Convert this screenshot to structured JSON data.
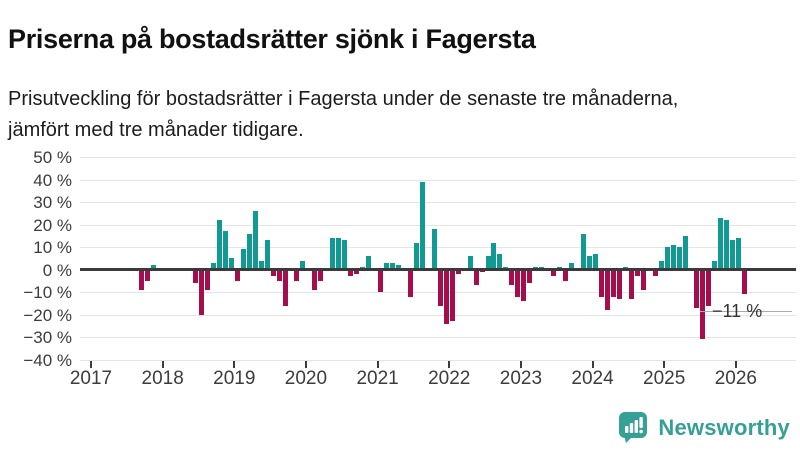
{
  "header": {
    "title": "Priserna på bostadsrätter sjönk i Fagersta",
    "subtitle": "Prisutveckling för bostadsrätter i Fagersta under de senaste tre månaderna, jämfört med tre månader tidigare."
  },
  "footer": {
    "brand": "Newsworthy"
  },
  "chart_data": {
    "type": "bar",
    "title": "Priserna på bostadsrätter sjönk i Fagersta",
    "subtitle": "Prisutveckling för bostadsrätter i Fagersta under de senaste tre månaderna, jämfört med tre månader tidigare.",
    "unit": "%",
    "ylim": [
      -40,
      50
    ],
    "grid": true,
    "y_ticks": {
      "values": [
        50,
        40,
        30,
        20,
        10,
        0,
        -10,
        -20,
        -30,
        -40
      ],
      "labels": [
        "50 %",
        "40 %",
        "30 %",
        "20 %",
        "10 %",
        "0 %",
        "−10 %",
        "−20 %",
        "−30 %",
        "−40 %"
      ]
    },
    "x_ticks": [
      "2017",
      "2018",
      "2019",
      "2020",
      "2021",
      "2022",
      "2023",
      "2024",
      "2025",
      "2026"
    ],
    "annotation": {
      "label": "−11 %",
      "value": -11,
      "month": "2026-02"
    },
    "colors": {
      "positive": "#119a94",
      "negative": "#a50d4d",
      "zero_line": "#3a3a3a",
      "grid": "#e4e4e4",
      "brand": "#35a094"
    },
    "series": [
      [
        "2017-09",
        -9
      ],
      [
        "2017-10",
        -5
      ],
      [
        "2017-11",
        2
      ],
      [
        "2018-06",
        -6
      ],
      [
        "2018-07",
        -20
      ],
      [
        "2018-08",
        -9
      ],
      [
        "2018-09",
        3
      ],
      [
        "2018-10",
        22
      ],
      [
        "2018-11",
        17
      ],
      [
        "2018-12",
        5
      ],
      [
        "2019-01",
        -5
      ],
      [
        "2019-02",
        9
      ],
      [
        "2019-03",
        16
      ],
      [
        "2019-04",
        26
      ],
      [
        "2019-05",
        4
      ],
      [
        "2019-06",
        13
      ],
      [
        "2019-07",
        -3
      ],
      [
        "2019-08",
        -5
      ],
      [
        "2019-09",
        -16
      ],
      [
        "2019-11",
        -5
      ],
      [
        "2019-12",
        4
      ],
      [
        "2020-02",
        -9
      ],
      [
        "2020-03",
        -5
      ],
      [
        "2020-05",
        14
      ],
      [
        "2020-06",
        14
      ],
      [
        "2020-07",
        13
      ],
      [
        "2020-08",
        -3
      ],
      [
        "2020-09",
        -2
      ],
      [
        "2020-10",
        1
      ],
      [
        "2020-11",
        6
      ],
      [
        "2021-01",
        -10
      ],
      [
        "2021-02",
        3
      ],
      [
        "2021-03",
        3
      ],
      [
        "2021-04",
        2
      ],
      [
        "2021-06",
        -12
      ],
      [
        "2021-07",
        12
      ],
      [
        "2021-08",
        39
      ],
      [
        "2021-10",
        18
      ],
      [
        "2021-11",
        -16
      ],
      [
        "2021-12",
        -24
      ],
      [
        "2022-01",
        -23
      ],
      [
        "2022-02",
        -2
      ],
      [
        "2022-04",
        6
      ],
      [
        "2022-05",
        -7
      ],
      [
        "2022-06",
        -1
      ],
      [
        "2022-07",
        6
      ],
      [
        "2022-08",
        12
      ],
      [
        "2022-09",
        7
      ],
      [
        "2022-10",
        1
      ],
      [
        "2022-11",
        -7
      ],
      [
        "2022-12",
        -12
      ],
      [
        "2023-01",
        -14
      ],
      [
        "2023-02",
        -6
      ],
      [
        "2023-03",
        1
      ],
      [
        "2023-04",
        1
      ],
      [
        "2023-06",
        -3
      ],
      [
        "2023-07",
        1
      ],
      [
        "2023-08",
        -5
      ],
      [
        "2023-09",
        3
      ],
      [
        "2023-11",
        16
      ],
      [
        "2023-12",
        6
      ],
      [
        "2024-01",
        7
      ],
      [
        "2024-02",
        -12
      ],
      [
        "2024-03",
        -18
      ],
      [
        "2024-04",
        -12
      ],
      [
        "2024-05",
        -13
      ],
      [
        "2024-06",
        1
      ],
      [
        "2024-07",
        -13
      ],
      [
        "2024-08",
        -3
      ],
      [
        "2024-09",
        -9
      ],
      [
        "2024-11",
        -3
      ],
      [
        "2024-12",
        4
      ],
      [
        "2025-01",
        10
      ],
      [
        "2025-02",
        11
      ],
      [
        "2025-03",
        10
      ],
      [
        "2025-04",
        15
      ],
      [
        "2025-06",
        -17
      ],
      [
        "2025-07",
        -31
      ],
      [
        "2025-08",
        -16
      ],
      [
        "2025-09",
        4
      ],
      [
        "2025-10",
        23
      ],
      [
        "2025-11",
        22
      ],
      [
        "2025-12",
        13
      ],
      [
        "2026-01",
        14
      ],
      [
        "2026-02",
        -11
      ]
    ]
  }
}
